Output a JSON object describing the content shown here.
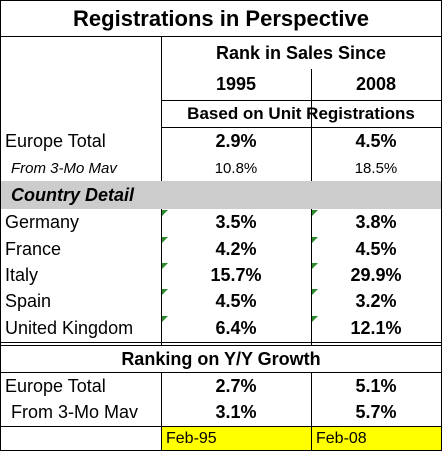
{
  "title": "Registrations in Perspective",
  "header": {
    "rank_label": "Rank in Sales Since",
    "year1": "1995",
    "year2": "2008",
    "basis": "Based on Unit Registrations"
  },
  "europe": {
    "label": "Europe Total",
    "v1": "2.9%",
    "v2": "4.5%"
  },
  "europe_mav": {
    "label": "From 3-Mo Mav",
    "v1": "10.8%",
    "v2": "18.5%"
  },
  "country_detail_label": "Country Detail",
  "countries": [
    {
      "label": "Germany",
      "v1": "3.5%",
      "v2": "3.8%"
    },
    {
      "label": "France",
      "v1": "4.2%",
      "v2": "4.5%"
    },
    {
      "label": "Italy",
      "v1": "15.7%",
      "v2": "29.9%"
    },
    {
      "label": "Spain",
      "v1": "4.5%",
      "v2": "3.2%"
    },
    {
      "label": "United Kingdom",
      "v1": "6.4%",
      "v2": "12.1%"
    }
  ],
  "growth": {
    "label": "Ranking on Y/Y Growth",
    "europe": {
      "label": "Europe Total",
      "v1": "2.7%",
      "v2": "5.1%"
    },
    "mav": {
      "label": "From 3-Mo Mav",
      "v1": "3.1%",
      "v2": "5.7%"
    }
  },
  "footer": {
    "d1": "Feb-95",
    "d2": "Feb-08"
  },
  "colors": {
    "grey_band": "#cccccc",
    "footer_highlight": "#ffff00",
    "comment_marker": "#2e8b2e"
  }
}
